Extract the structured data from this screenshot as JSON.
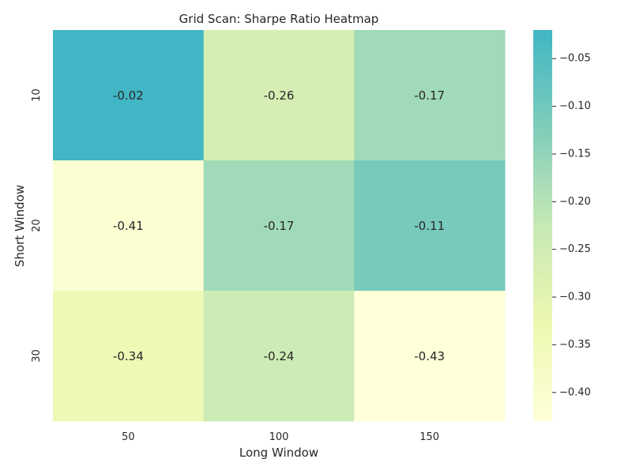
{
  "chart_data": {
    "type": "heatmap",
    "title": "Grid Scan: Sharpe Ratio Heatmap",
    "xlabel": "Long Window",
    "ylabel": "Short Window",
    "x_categories": [
      "50",
      "100",
      "150"
    ],
    "y_categories": [
      "10",
      "20",
      "30"
    ],
    "values": [
      [
        -0.02,
        -0.26,
        -0.17
      ],
      [
        -0.41,
        -0.17,
        -0.11
      ],
      [
        -0.34,
        -0.24,
        -0.43
      ]
    ],
    "value_labels": [
      [
        "-0.02",
        "-0.26",
        "-0.17"
      ],
      [
        "-0.41",
        "-0.17",
        "-0.11"
      ],
      [
        "-0.34",
        "-0.24",
        "-0.43"
      ]
    ],
    "colorbar": {
      "range": [
        -0.43,
        -0.02
      ],
      "ticks": [
        -0.05,
        -0.1,
        -0.15,
        -0.2,
        -0.25,
        -0.3,
        -0.35,
        -0.4
      ],
      "tick_labels": [
        "−0.05",
        "−0.10",
        "−0.15",
        "−0.20",
        "−0.25",
        "−0.30",
        "−0.35",
        "−0.40"
      ],
      "colormap": [
        "#ffffd9",
        "#edf8b1",
        "#c7e9b4",
        "#7fcdbb",
        "#41b6c4"
      ]
    },
    "grid": false
  }
}
